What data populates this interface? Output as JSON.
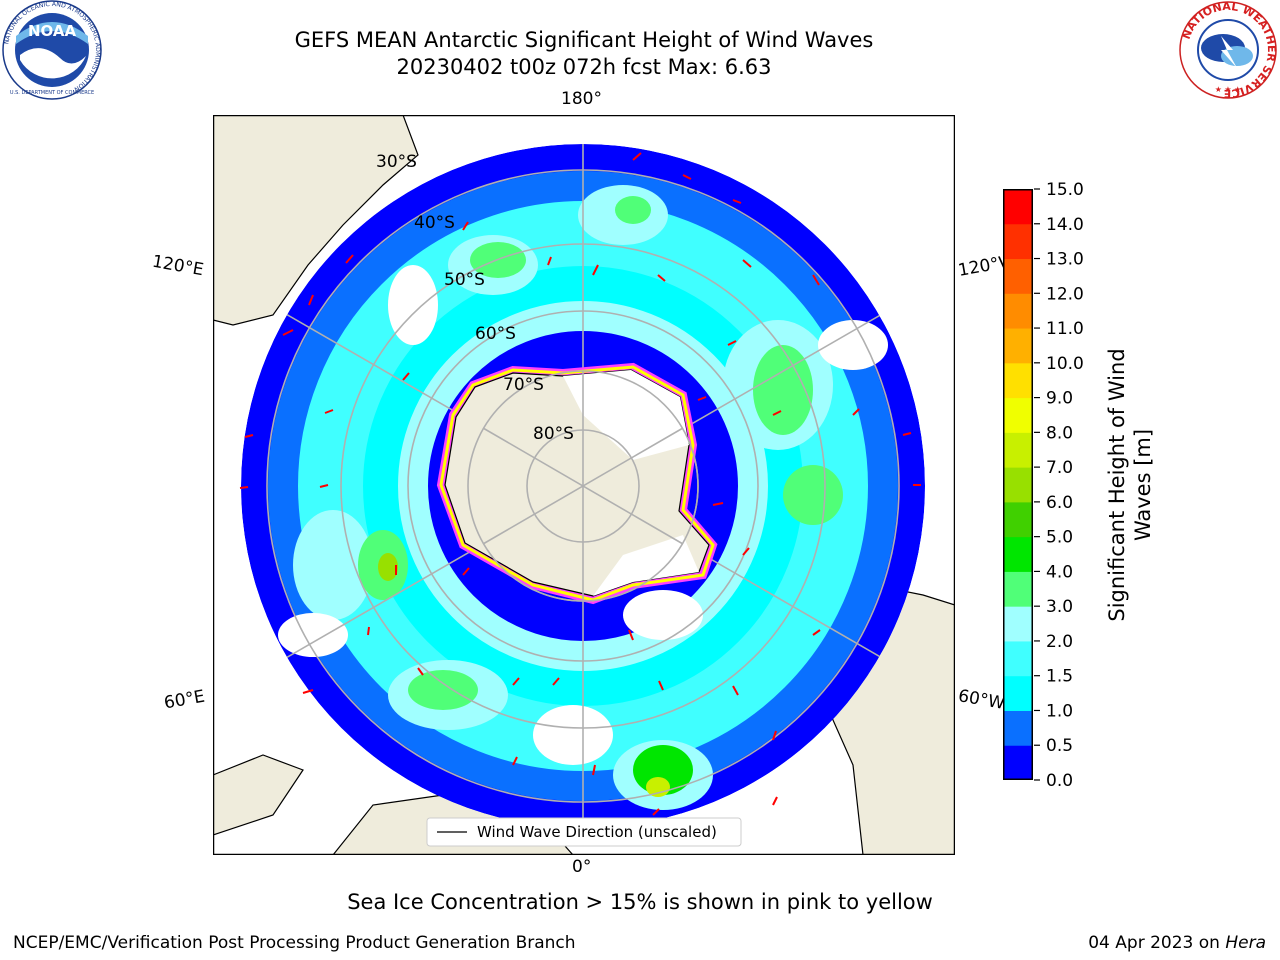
{
  "header": {
    "title_line1": "GEFS MEAN Antarctic Significant Height of Wind Waves",
    "title_line2": "20230402 t00z 072h fcst   Max: 6.63"
  },
  "map": {
    "projection": "south-polar-stereographic",
    "longitude_labels": {
      "top": "180°",
      "bottom": "0°",
      "left_upper": "120°E",
      "left_lower": "60°E",
      "right_upper": "120°W",
      "right_lower": "60°W"
    },
    "latitude_labels": [
      "30°S",
      "40°S",
      "50°S",
      "60°S",
      "70°S",
      "80°S"
    ],
    "legend_label": "Wind Wave Direction (unscaled)",
    "land_color": "#efecdc",
    "ice_colors": [
      "#ff40ff",
      "#ffff00"
    ],
    "arrow_color": "#ff0000"
  },
  "colorbar": {
    "title_line1": "Significant Height of Wind",
    "title_line2": "Waves [m]",
    "ticks": [
      "0.0",
      "0.5",
      "1.0",
      "1.5",
      "2.0",
      "3.0",
      "4.0",
      "5.0",
      "6.0",
      "7.0",
      "8.0",
      "9.0",
      "10.0",
      "11.0",
      "12.0",
      "13.0",
      "14.0",
      "15.0"
    ],
    "colors": [
      "#0000ff",
      "#0a70ff",
      "#00ffff",
      "#40ffff",
      "#a0ffff",
      "#50ff78",
      "#00e600",
      "#40d000",
      "#98e000",
      "#c8f000",
      "#f0ff00",
      "#ffe000",
      "#ffb000",
      "#ff8c00",
      "#ff6000",
      "#ff3000",
      "#ff0000"
    ]
  },
  "footer": {
    "caption": "Sea Ice Concentration > 15% is shown in pink to yellow",
    "credit": "NCEP/EMC/Verification Post Processing Product Generation Branch",
    "date": "04 Apr 2023 on ",
    "host": "Hera"
  },
  "logos": {
    "noaa": "NOAA",
    "noaa_ring": "NATIONAL OCEANIC AND ATMOSPHERIC ADMINISTRATION",
    "noaa_ring_bottom": "U.S. DEPARTMENT OF COMMERCE",
    "nws_ring": "NATIONAL WEATHER SERVICE"
  }
}
